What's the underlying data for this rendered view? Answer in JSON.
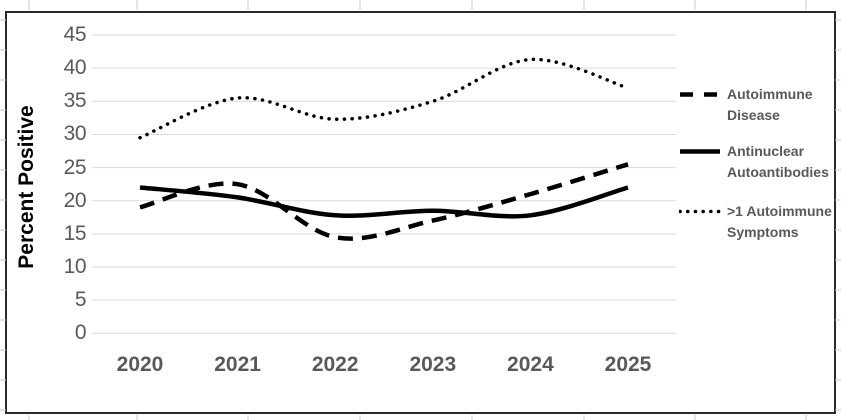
{
  "page": {
    "background": "#ffffff",
    "frame_color": "#2a2a2a",
    "spreadsheet_stub_color": "#c9c9c9"
  },
  "chart_data": {
    "type": "line",
    "title": "",
    "xlabel": "",
    "ylabel": "Percent Positive",
    "categories": [
      "2020",
      "2021",
      "2022",
      "2023",
      "2024",
      "2025"
    ],
    "y_ticks": [
      "0",
      "5",
      "10",
      "15",
      "20",
      "25",
      "30",
      "35",
      "40",
      "45"
    ],
    "y_tick_values": [
      0,
      5,
      10,
      15,
      20,
      25,
      30,
      35,
      40,
      45
    ],
    "ylim": [
      0,
      45
    ],
    "grid": true,
    "legend_position": "right",
    "line_color": "#000000",
    "gridline_color": "#d9d9d9",
    "tick_label_color": "#595959",
    "axis_title_color": "#000000",
    "legend_text_color": "#595959",
    "series": [
      {
        "id": "autoimmune-disease",
        "name": "Autoimmune Disease",
        "label_lines": [
          "Autoimmune",
          "Disease"
        ],
        "style": "dashed",
        "values": [
          19,
          22.5,
          14.5,
          17,
          21,
          25.5
        ]
      },
      {
        "id": "antinuclear-autoantibodies",
        "name": "Antinuclear Autoantibodies",
        "label_lines": [
          "Antinuclear",
          "Autoantibodies"
        ],
        "style": "solid",
        "values": [
          22,
          20.5,
          17.8,
          18.5,
          17.8,
          22
        ]
      },
      {
        "id": "gt1-autoimmune-symptoms",
        "name": ">1 Autoimmune Symptoms",
        "label_lines": [
          ">1 Autoimmune",
          "Symptoms"
        ],
        "style": "dotted",
        "values": [
          29.5,
          35.5,
          32.3,
          35,
          41.3,
          37
        ]
      }
    ]
  }
}
